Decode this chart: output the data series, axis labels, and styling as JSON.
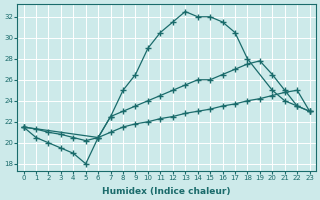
{
  "xlabel": "Humidex (Indice chaleur)",
  "bg_color": "#cdeaea",
  "grid_color": "#ffffff",
  "line_color": "#1a6b6b",
  "xlim": [
    -0.5,
    23.5
  ],
  "ylim": [
    17.3,
    33.2
  ],
  "xticks": [
    0,
    1,
    2,
    3,
    4,
    5,
    6,
    7,
    8,
    9,
    10,
    11,
    12,
    13,
    14,
    15,
    16,
    17,
    18,
    19,
    20,
    21,
    22,
    23
  ],
  "yticks": [
    18,
    20,
    22,
    24,
    26,
    28,
    30,
    32
  ],
  "line_peak_x": [
    0,
    6,
    7,
    8,
    9,
    10,
    11,
    12,
    13,
    14,
    15,
    16,
    17,
    18,
    20,
    21,
    22,
    23
  ],
  "line_peak_y": [
    21.5,
    20.5,
    22.5,
    25.0,
    26.5,
    29.0,
    30.5,
    31.5,
    32.5,
    32.0,
    32.0,
    31.5,
    30.5,
    28.0,
    25.0,
    24.0,
    23.5,
    23.0
  ],
  "line_straight_x": [
    0,
    1,
    2,
    3,
    4,
    5,
    6,
    7,
    8,
    9,
    10,
    11,
    12,
    13,
    14,
    15,
    16,
    17,
    18,
    19,
    20,
    21,
    22,
    23
  ],
  "line_straight_y": [
    21.5,
    21.3,
    21.0,
    20.8,
    20.5,
    20.2,
    20.5,
    21.0,
    21.5,
    21.8,
    22.0,
    22.3,
    22.5,
    22.8,
    23.0,
    23.2,
    23.5,
    23.7,
    24.0,
    24.2,
    24.5,
    24.8,
    25.0,
    23.0
  ],
  "line_dip_x": [
    0,
    1,
    2,
    3,
    4,
    5,
    6,
    7,
    8,
    9,
    10,
    11,
    12,
    13,
    14,
    15,
    16,
    17,
    18,
    19,
    20,
    21,
    22,
    23
  ],
  "line_dip_y": [
    21.5,
    20.5,
    20.0,
    19.5,
    19.0,
    18.0,
    20.5,
    22.5,
    23.0,
    23.5,
    24.0,
    24.5,
    25.0,
    25.5,
    26.0,
    26.0,
    26.5,
    27.0,
    27.5,
    27.8,
    26.5,
    25.0,
    23.5,
    23.0
  ]
}
